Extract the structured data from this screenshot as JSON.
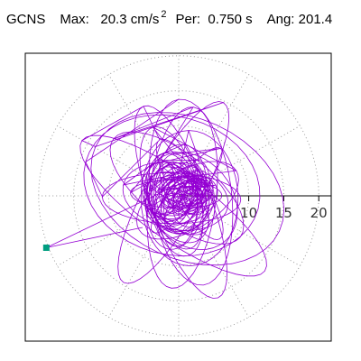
{
  "header": {
    "station": "GCNS",
    "max_label": "Max:",
    "max_value": "20.3 cm/s",
    "max_exp": "2",
    "per_label": "Per:",
    "per_value": "0.750 s",
    "ang_label": "Ang:",
    "ang_value": "201.4"
  },
  "chart_data": {
    "type": "polar-orbit",
    "title": "GCNS Max: 20.3 cm/s2 Per: 0.750 s Ang: 201.4",
    "radial_ticks": [
      10,
      15,
      20
    ],
    "radial_tick_labels": [
      "10",
      "15",
      "20"
    ],
    "rings": [
      5,
      10,
      15,
      20
    ],
    "spokes_deg": [
      0,
      30,
      60,
      90,
      120,
      150,
      180,
      210,
      240,
      270,
      300,
      330
    ],
    "rmax": 20.3,
    "max_point": {
      "r": 20.3,
      "angle_deg": 201.4
    },
    "grid": true,
    "colors": {
      "trace": "#9400d3",
      "grid": "#999999",
      "marker": "#009e80",
      "frame": "#000000"
    }
  }
}
